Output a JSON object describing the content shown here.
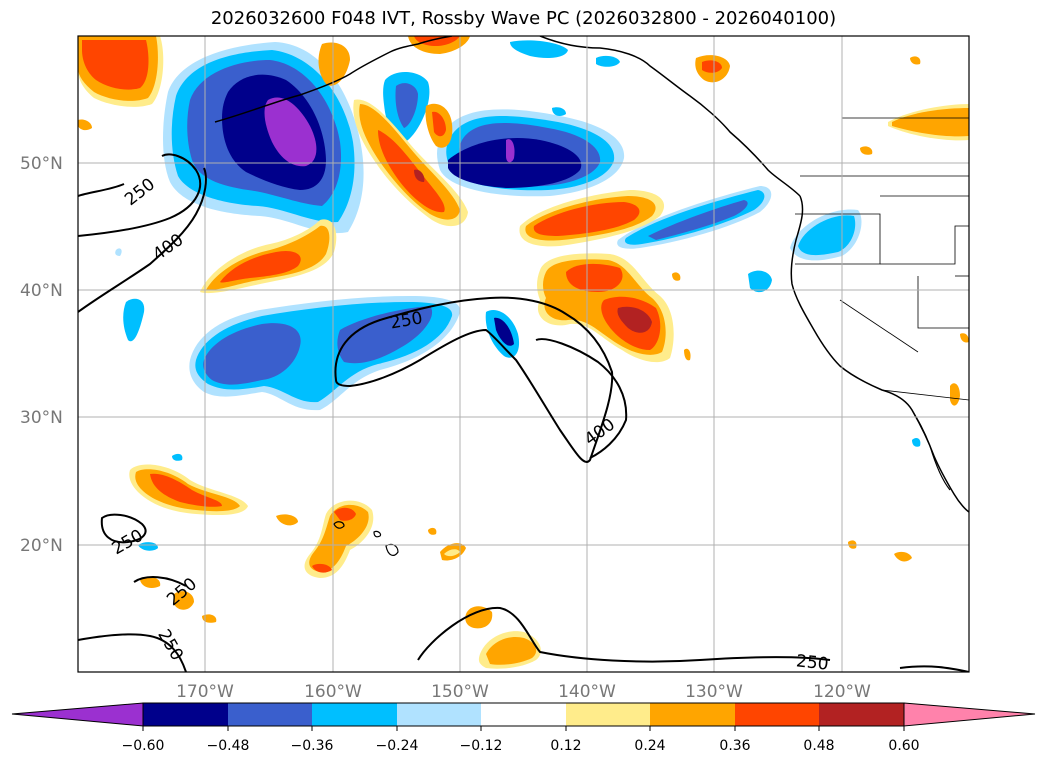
{
  "title": "2026032600 F048 IVT, Rossby Wave PC (2026032800 - 2026040100)",
  "map": {
    "lon_range": [
      -180,
      -110
    ],
    "lat_range": [
      10,
      60
    ],
    "lat_ticks": [
      {
        "value": 50,
        "label": "50°N"
      },
      {
        "value": 40,
        "label": "40°N"
      },
      {
        "value": 30,
        "label": "30°N"
      },
      {
        "value": 20,
        "label": "20°N"
      }
    ],
    "lon_ticks": [
      {
        "value": -170,
        "label": "170°W"
      },
      {
        "value": -160,
        "label": "160°W"
      },
      {
        "value": -150,
        "label": "150°W"
      },
      {
        "value": -140,
        "label": "140°W"
      },
      {
        "value": -130,
        "label": "130°W"
      },
      {
        "value": -120,
        "label": "120°W"
      }
    ],
    "grid": true,
    "contour_labels": [
      "250",
      "400",
      "250",
      "400",
      "250",
      "250",
      "250",
      "250"
    ]
  },
  "colorbar": {
    "labels": [
      "−0.60",
      "−0.48",
      "−0.36",
      "−0.24",
      "−0.12",
      "0.12",
      "0.24",
      "0.36",
      "0.48",
      "0.60"
    ],
    "colors": [
      "#9b30d0",
      "#00008b",
      "#3a5fcd",
      "#00bfff",
      "#b0e2ff",
      "#ffffff",
      "#ffec8b",
      "#ffa500",
      "#ff4500",
      "#b22222",
      "#ff82ab"
    ],
    "extend": "both"
  }
}
